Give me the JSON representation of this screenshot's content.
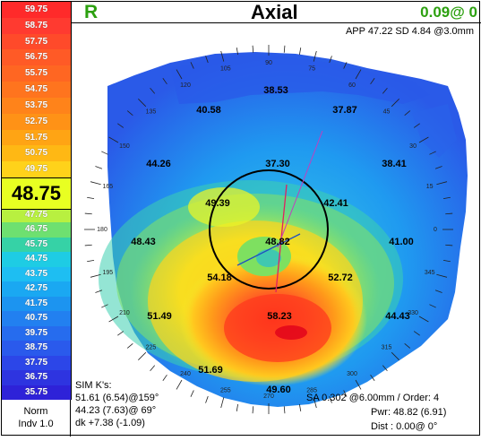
{
  "header": {
    "eye": "R",
    "title": "Axial",
    "value": "0.09@ 0"
  },
  "app_line": "APP 47.22 SD 4.84 @3.0mm",
  "scale": {
    "entries": [
      {
        "label": "59.75",
        "color": "#ff2a2a"
      },
      {
        "label": "58.75",
        "color": "#ff3a30"
      },
      {
        "label": "57.75",
        "color": "#ff4a2a"
      },
      {
        "label": "56.75",
        "color": "#ff5a26"
      },
      {
        "label": "55.75",
        "color": "#ff6622"
      },
      {
        "label": "54.75",
        "color": "#ff741e"
      },
      {
        "label": "53.75",
        "color": "#ff831a"
      },
      {
        "label": "52.75",
        "color": "#ff9216"
      },
      {
        "label": "51.75",
        "color": "#ffa414"
      },
      {
        "label": "50.75",
        "color": "#ffb814"
      },
      {
        "label": "49.75",
        "color": "#ffd21a"
      },
      {
        "label": "48.75",
        "color": "#e8ff22"
      },
      {
        "label": "47.75",
        "color": "#b8f040"
      },
      {
        "label": "46.75",
        "color": "#6ee070"
      },
      {
        "label": "45.75",
        "color": "#36d2a6"
      },
      {
        "label": "44.75",
        "color": "#1ecce4"
      },
      {
        "label": "43.75",
        "color": "#1ebef2"
      },
      {
        "label": "42.75",
        "color": "#1aa8f2"
      },
      {
        "label": "41.75",
        "color": "#1c94f0"
      },
      {
        "label": "40.75",
        "color": "#2280f0"
      },
      {
        "label": "39.75",
        "color": "#266cee"
      },
      {
        "label": "38.75",
        "color": "#2a5aec"
      },
      {
        "label": "37.75",
        "color": "#2c46e8"
      },
      {
        "label": "36.75",
        "color": "#2e34e0"
      },
      {
        "label": "35.75",
        "color": "#2e22d8"
      }
    ],
    "current": "48.75",
    "norm": "Norm",
    "indv": "Indv 1.0"
  },
  "axis_angles": [
    "90",
    "75",
    "60",
    "45",
    "30",
    "15",
    "0",
    "345",
    "330",
    "315",
    "300",
    "285",
    "270",
    "255",
    "240",
    "225",
    "210",
    "195",
    "180",
    "165",
    "150",
    "135",
    "120",
    "105"
  ],
  "map_values": [
    {
      "v": "38.53"
    },
    {
      "v": "40.58"
    },
    {
      "v": "37.87"
    },
    {
      "v": "44.26"
    },
    {
      "v": "37.30"
    },
    {
      "v": "38.41"
    },
    {
      "v": "49.39"
    },
    {
      "v": "42.41"
    },
    {
      "v": "48.43"
    },
    {
      "v": "48.82"
    },
    {
      "v": "41.00"
    },
    {
      "v": "54.18"
    },
    {
      "v": "52.72"
    },
    {
      "v": "51.49"
    },
    {
      "v": "58.23"
    },
    {
      "v": "44.43"
    },
    {
      "v": "51.69"
    },
    {
      "v": "49.60"
    }
  ],
  "simk": {
    "title": "SIM K's:",
    "k1": "51.61 (6.54)@159°",
    "k2": "44.23 (7.63)@ 69°",
    "dk": "dk +7.38 (-1.09)"
  },
  "sa": "SA 0.302 @6.00mm / Order: 4",
  "pwr": "Pwr: 48.82 (6.91)",
  "dist": "Dist : 0.00@ 0°"
}
